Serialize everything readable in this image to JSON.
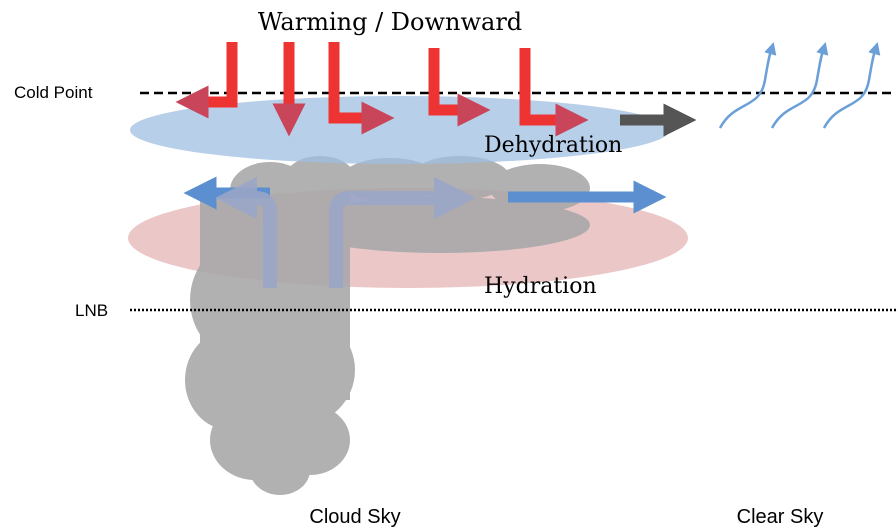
{
  "title": "Warming / Downward",
  "levels": {
    "cold_point": "Cold Point",
    "lnb": "LNB"
  },
  "layers": {
    "upper": "Dehydration",
    "lower": "Hydration"
  },
  "columns": {
    "left": "Cloud Sky",
    "right": "Clear Sky"
  }
}
